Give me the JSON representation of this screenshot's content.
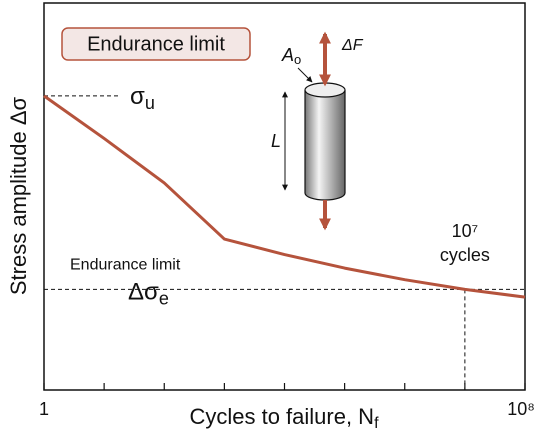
{
  "chart_data": {
    "type": "line",
    "title": "Endurance limit",
    "x_label": {
      "text": "Cycles to failure, N",
      "sub": "f"
    },
    "y_label": "Stress amplitude Δσ",
    "x": [
      1,
      10,
      100,
      1000,
      10000,
      100000,
      1000000,
      10000000,
      100000000
    ],
    "series": [
      {
        "name": null,
        "color": "#b5533c",
        "values": [
          76,
          65,
          53.5,
          39,
          35,
          31.5,
          28.5,
          26,
          24
        ]
      }
    ],
    "xlim": [
      1,
      100000000
    ],
    "xticks": [
      {
        "value": 1,
        "label": "1"
      },
      {
        "value": 10,
        "label": null
      },
      {
        "value": 100,
        "label": null
      },
      {
        "value": 1000,
        "label": null
      },
      {
        "value": 10000,
        "label": null
      },
      {
        "value": 100000,
        "label": null
      },
      {
        "value": 1000000,
        "label": null
      },
      {
        "value": 10000000,
        "label": null
      },
      {
        "value": 100000000,
        "label": "10⁸"
      }
    ],
    "x_log": true,
    "ylim": [
      0,
      100
    ],
    "yticks": [],
    "ultimate": {
      "symbol": "σ",
      "sub": "u",
      "value": 76
    },
    "endurance": {
      "label": "Endurance limit",
      "symbol": "Δσ",
      "sub": "e",
      "value": 26
    },
    "cycles_marker": {
      "value": 10000000,
      "label": "10⁷",
      "text": "cycles"
    },
    "inset": {
      "area": {
        "text": "A",
        "sub": "o"
      },
      "force": "ΔF",
      "length": "L"
    }
  }
}
